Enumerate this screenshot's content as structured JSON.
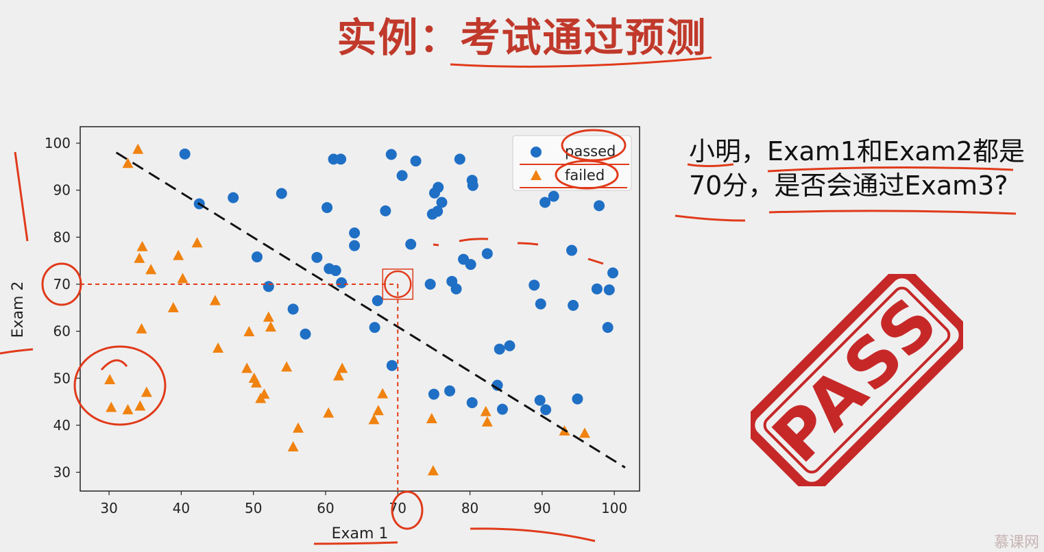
{
  "slide": {
    "title": "实例：考试通过预测",
    "question": "小明，Exam1和Exam2都是70分，是否会通过Exam3?",
    "stamp_text": "PASS",
    "watermark": "慕课网"
  },
  "colors": {
    "title": "#c0392b",
    "passed": "#1f6fc5",
    "failed": "#f0820f",
    "stamp": "#c62828",
    "annotation": "#e03a1a"
  },
  "chart_data": {
    "type": "scatter",
    "xlabel": "Exam 1",
    "ylabel": "Exam 2",
    "xlim": [
      26,
      103.5
    ],
    "ylim": [
      26,
      103.5
    ],
    "xticks": [
      30,
      40,
      50,
      60,
      70,
      80,
      90,
      100
    ],
    "yticks": [
      30,
      40,
      50,
      60,
      70,
      80,
      90,
      100
    ],
    "legend": {
      "position": "top-right",
      "entries": [
        "passed",
        "failed"
      ]
    },
    "decision_boundary": {
      "style": "dashed",
      "from": [
        31,
        98
      ],
      "to": [
        101.5,
        31
      ]
    },
    "query_point": {
      "x": 70,
      "y": 70
    },
    "series": [
      {
        "name": "passed",
        "marker": "circle",
        "points": [
          [
            40.5,
            97.7
          ],
          [
            42.5,
            87.1
          ],
          [
            47.2,
            88.4
          ],
          [
            50.5,
            75.8
          ],
          [
            52.1,
            69.5
          ],
          [
            53.9,
            89.3
          ],
          [
            55.5,
            64.7
          ],
          [
            57.2,
            59.4
          ],
          [
            58.8,
            75.7
          ],
          [
            60.2,
            86.3
          ],
          [
            60.5,
            73.3
          ],
          [
            61.1,
            96.6
          ],
          [
            61.4,
            72.9
          ],
          [
            62.1,
            96.6
          ],
          [
            62.2,
            70.3
          ],
          [
            64.0,
            80.9
          ],
          [
            64.0,
            78.2
          ],
          [
            66.8,
            60.8
          ],
          [
            67.2,
            66.5
          ],
          [
            68.3,
            85.6
          ],
          [
            69.1,
            97.6
          ],
          [
            69.2,
            52.7
          ],
          [
            70.6,
            93.1
          ],
          [
            71.8,
            78.5
          ],
          [
            72.5,
            96.2
          ],
          [
            74.5,
            70.0
          ],
          [
            74.8,
            84.9
          ],
          [
            75.1,
            89.4
          ],
          [
            75.0,
            46.6
          ],
          [
            75.5,
            85.5
          ],
          [
            75.6,
            90.6
          ],
          [
            76.1,
            87.4
          ],
          [
            77.2,
            47.3
          ],
          [
            77.5,
            70.6
          ],
          [
            78.1,
            69.0
          ],
          [
            78.6,
            96.6
          ],
          [
            79.1,
            75.3
          ],
          [
            80.1,
            74.2
          ],
          [
            80.3,
            44.8
          ],
          [
            80.3,
            92.1
          ],
          [
            80.4,
            91.0
          ],
          [
            82.4,
            76.5
          ],
          [
            83.8,
            48.5
          ],
          [
            84.1,
            56.2
          ],
          [
            84.5,
            43.4
          ],
          [
            85.5,
            56.9
          ],
          [
            88.9,
            69.8
          ],
          [
            89.7,
            45.3
          ],
          [
            89.8,
            65.8
          ],
          [
            90.4,
            87.4
          ],
          [
            90.5,
            43.3
          ],
          [
            91.6,
            88.7
          ],
          [
            94.1,
            77.2
          ],
          [
            94.3,
            65.5
          ],
          [
            94.9,
            45.6
          ],
          [
            97.6,
            69.0
          ],
          [
            97.9,
            86.7
          ],
          [
            99.1,
            60.8
          ],
          [
            99.3,
            68.8
          ],
          [
            99.8,
            72.4
          ]
        ]
      },
      {
        "name": "failed",
        "marker": "triangle",
        "points": [
          [
            30.1,
            49.6
          ],
          [
            30.3,
            43.7
          ],
          [
            32.6,
            95.6
          ],
          [
            32.6,
            43.2
          ],
          [
            34.0,
            98.6
          ],
          [
            34.2,
            75.4
          ],
          [
            34.3,
            44.0
          ],
          [
            34.5,
            60.4
          ],
          [
            34.6,
            77.9
          ],
          [
            35.2,
            46.9
          ],
          [
            35.8,
            73.0
          ],
          [
            39.6,
            76.0
          ],
          [
            40.2,
            71.1
          ],
          [
            38.9,
            64.9
          ],
          [
            42.2,
            78.7
          ],
          [
            44.7,
            66.4
          ],
          [
            45.1,
            56.3
          ],
          [
            49.1,
            52.0
          ],
          [
            49.4,
            59.8
          ],
          [
            50.1,
            49.9
          ],
          [
            50.4,
            48.9
          ],
          [
            51.0,
            45.6
          ],
          [
            51.5,
            46.5
          ],
          [
            52.1,
            62.9
          ],
          [
            52.4,
            60.8
          ],
          [
            54.6,
            52.3
          ],
          [
            55.5,
            35.3
          ],
          [
            56.2,
            39.3
          ],
          [
            60.4,
            42.5
          ],
          [
            61.8,
            50.4
          ],
          [
            62.3,
            52.0
          ],
          [
            66.7,
            41.1
          ],
          [
            67.3,
            43.0
          ],
          [
            67.9,
            46.6
          ],
          [
            74.7,
            41.3
          ],
          [
            74.9,
            30.2
          ],
          [
            82.2,
            42.8
          ],
          [
            82.4,
            40.6
          ],
          [
            93.1,
            38.7
          ],
          [
            95.9,
            38.2
          ]
        ]
      }
    ]
  }
}
